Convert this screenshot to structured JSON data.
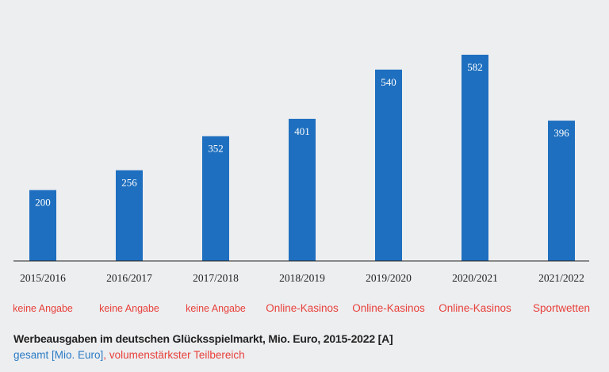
{
  "chart_data": {
    "type": "bar",
    "categories": [
      "2015/2016",
      "2016/2017",
      "2017/2018",
      "2018/2019",
      "2019/2020",
      "2020/2021",
      "2021/2022"
    ],
    "series": [
      {
        "name": "gesamt [Mio. Euro]",
        "values": [
          200,
          256,
          352,
          401,
          540,
          582,
          396
        ]
      }
    ],
    "sector_labels": [
      "keine Angabe",
      "keine Angabe",
      "keine Angabe",
      "Online-Kasinos",
      "Online-Kasinos",
      "Online-Kasinos",
      "Sportwetten"
    ],
    "title": "Werbeausgaben im deutschen Glücksspielmarkt, Mio. Euro, 2015-2022 [A]",
    "ylim": [
      0,
      600
    ],
    "grid": false,
    "bar_color": "#1e6fbf",
    "sector_color": "#e8403a"
  },
  "legend": {
    "total": "gesamt [Mio. Euro]",
    "separator": ",",
    "sector": "volumenstärkster Teilbereich"
  }
}
